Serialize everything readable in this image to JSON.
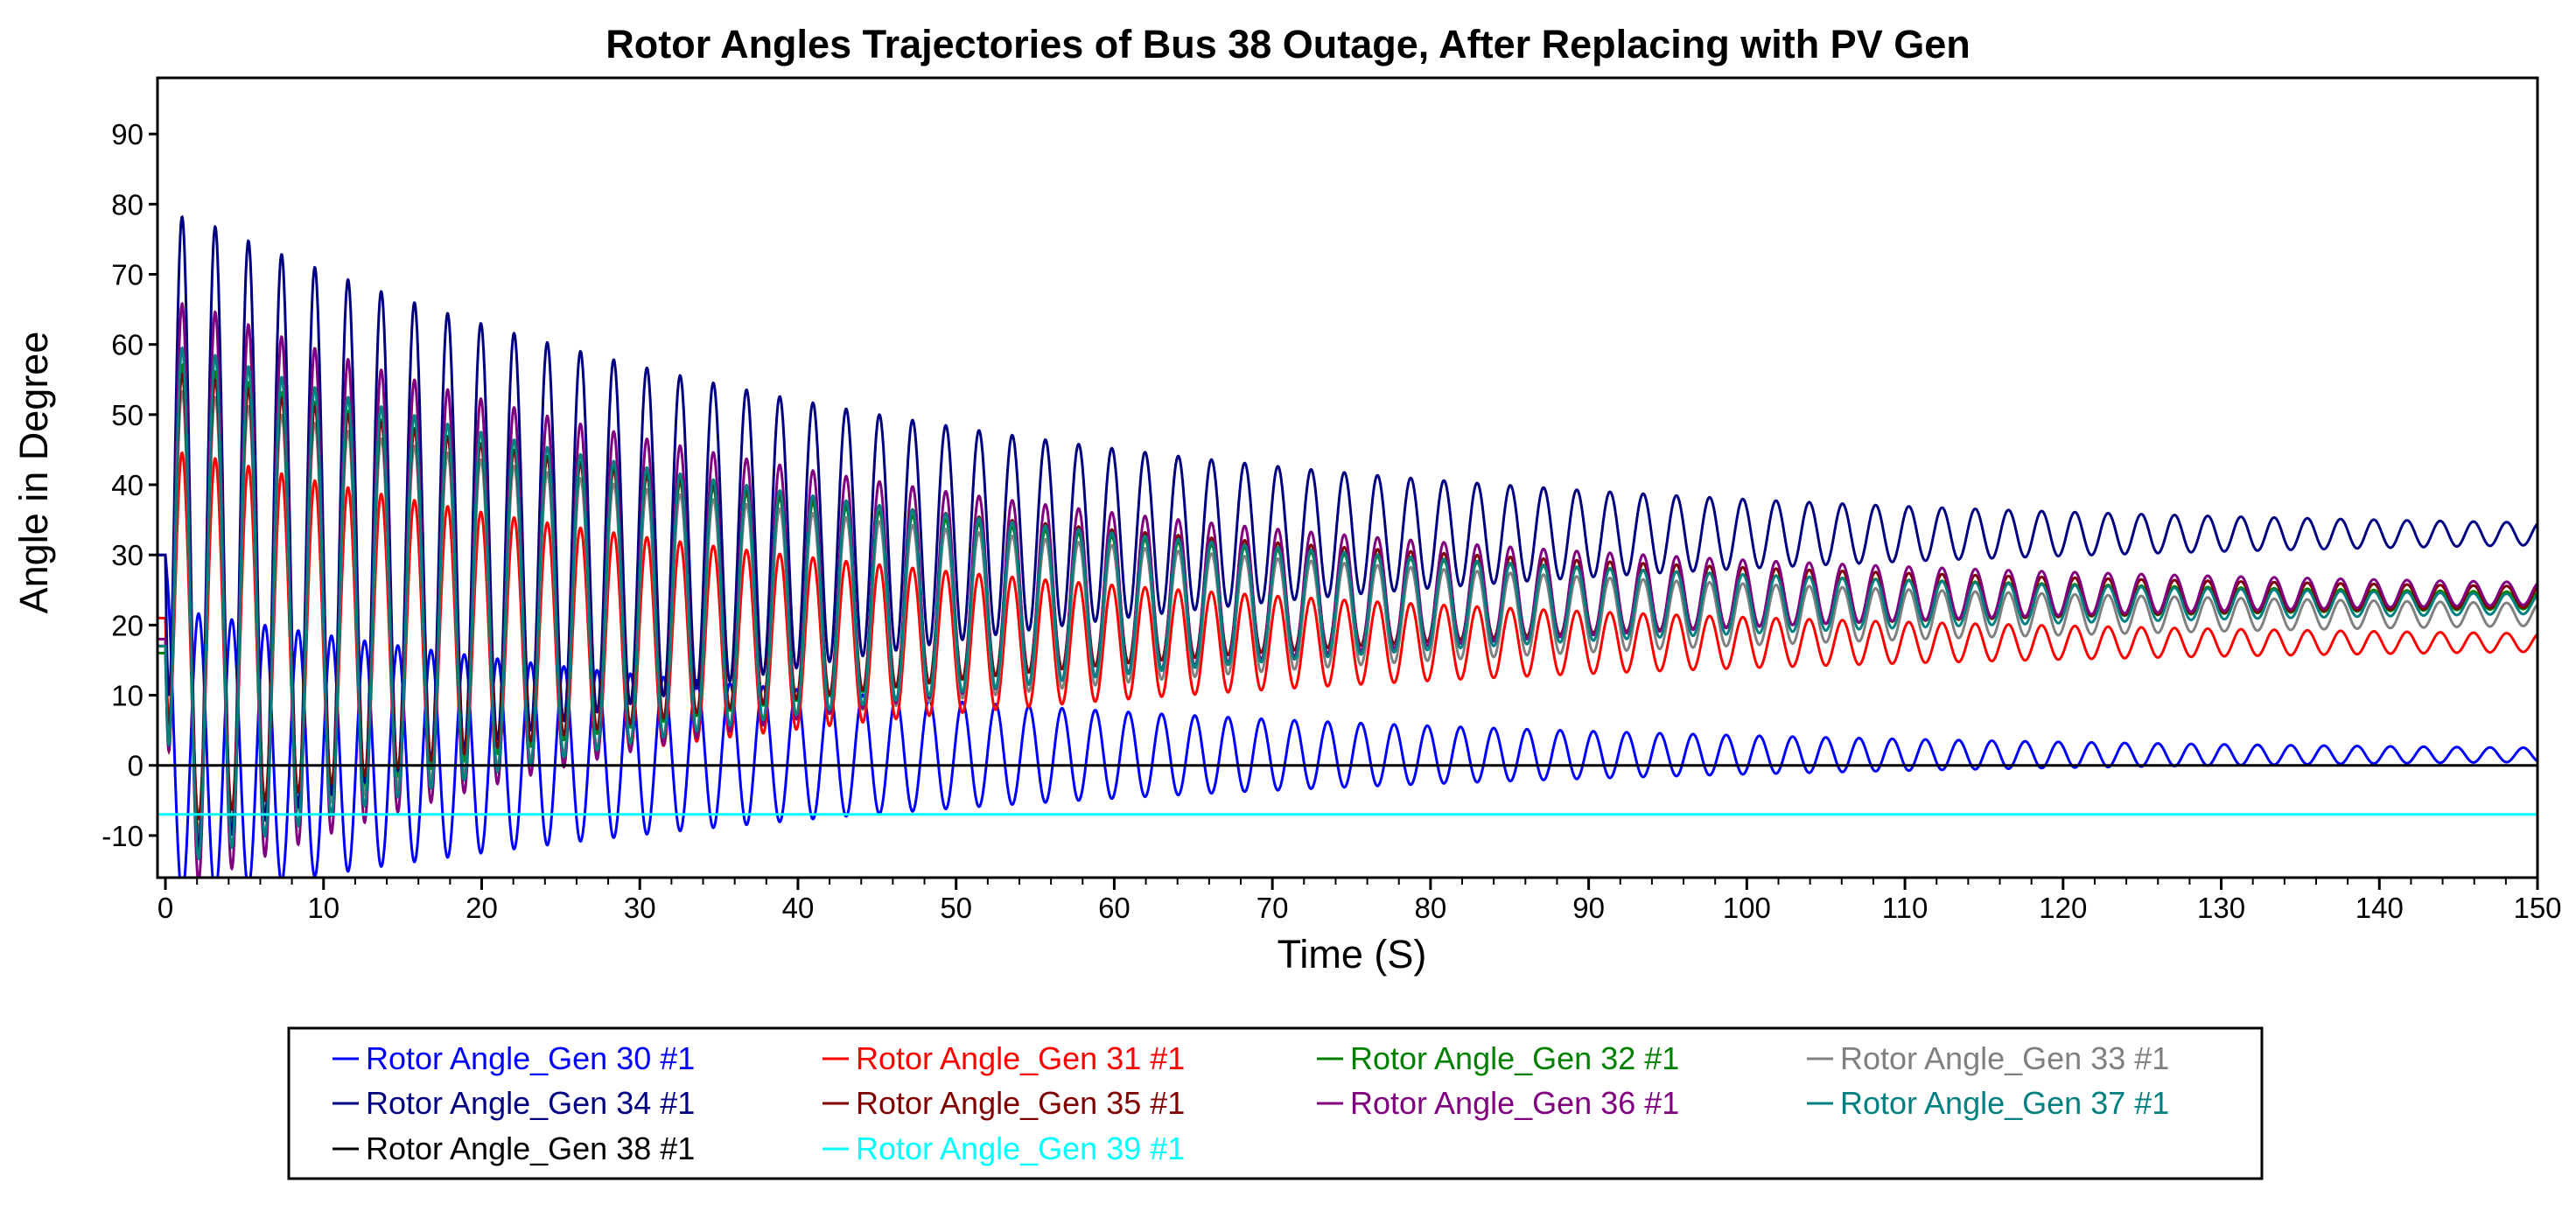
{
  "chart_data": {
    "type": "line",
    "title": "Rotor Angles Trajectories of Bus 38 Outage, After Replacing with PV Gen",
    "xlabel": "Time (S)",
    "ylabel": "Angle in Degree",
    "xlim": [
      -0.5,
      150
    ],
    "ylim": [
      -16,
      98
    ],
    "xticks": [
      0,
      10,
      20,
      30,
      40,
      50,
      60,
      70,
      80,
      90,
      100,
      110,
      120,
      130,
      140,
      150
    ],
    "yticks": [
      -10,
      0,
      10,
      20,
      30,
      40,
      50,
      60,
      70,
      80,
      90
    ],
    "xtick_labels": [
      "0",
      "10",
      "20",
      "30",
      "40",
      "50",
      "60",
      "70",
      "80",
      "90",
      "100",
      "110",
      "120",
      "130",
      "140",
      "150"
    ],
    "ytick_labels": [
      "-10",
      "0",
      "10",
      "20",
      "30",
      "40",
      "50",
      "60",
      "70",
      "80",
      "90"
    ],
    "grid": false,
    "legend_position": "bottom",
    "period_s": 2.1,
    "series": [
      {
        "name": "Rotor Angle_Gen 30 #1",
        "color": "#0000FF",
        "initial": 30,
        "final": 1.5,
        "amp0": 21,
        "amp_end": 1.0,
        "phase": 0
      },
      {
        "name": "Rotor Angle_Gen 31 #1",
        "color": "#FF0000",
        "initial": 21,
        "final": 17.5,
        "amp0": 28,
        "amp_end": 1.3,
        "phase": 3.1416
      },
      {
        "name": "Rotor Angle_Gen 32 #1",
        "color": "#008000",
        "initial": 16,
        "final": 23.5,
        "amp0": 35,
        "amp_end": 1.2,
        "phase": 3.1416
      },
      {
        "name": "Rotor Angle_Gen 33 #1",
        "color": "#808080",
        "initial": 17,
        "final": 21.5,
        "amp0": 33,
        "amp_end": 1.6,
        "phase": 3.1416
      },
      {
        "name": "Rotor Angle_Gen 34 #1",
        "color": "#000080",
        "initial": 30,
        "final": 33,
        "amp0": 47,
        "amp_end": 1.6,
        "phase": 3.1416
      },
      {
        "name": "Rotor Angle_Gen 35 #1",
        "color": "#800000",
        "initial": 17,
        "final": 24,
        "amp0": 33,
        "amp_end": 1.5,
        "phase": 3.1416
      },
      {
        "name": "Rotor Angle_Gen 36 #1",
        "color": "#800080",
        "initial": 18,
        "final": 24.5,
        "amp0": 43,
        "amp_end": 1.6,
        "phase": 3.1416
      },
      {
        "name": "Rotor Angle_Gen 37 #1",
        "color": "#008080",
        "initial": 17,
        "final": 23,
        "amp0": 38,
        "amp_end": 1.4,
        "phase": 3.1416
      },
      {
        "name": "Rotor Angle_Gen 38 #1",
        "color": "#000000",
        "initial": 0,
        "final": 0,
        "amp0": 0,
        "amp_end": 0,
        "phase": 0
      },
      {
        "name": "Rotor Angle_Gen 39 #1",
        "color": "#00FFFF",
        "initial": -7,
        "final": -7,
        "amp0": 0,
        "amp_end": 0,
        "phase": 0
      }
    ]
  }
}
